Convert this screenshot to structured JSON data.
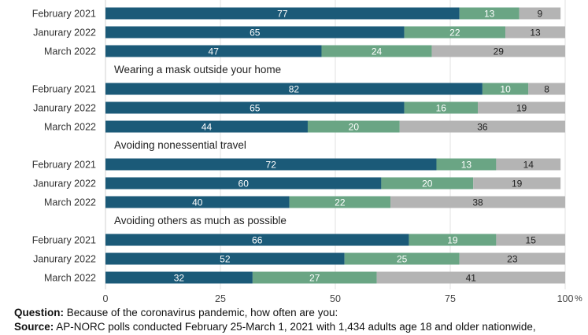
{
  "chart_data": {
    "type": "bar",
    "orientation": "horizontal",
    "stacked": true,
    "xlim": [
      0,
      100
    ],
    "x_ticks": [
      "0",
      "25",
      "50",
      "75",
      "100"
    ],
    "x_unit": "%",
    "grid": true,
    "colors": [
      "#1b5a78",
      "#6aa584",
      "#b4b4b4"
    ],
    "groups": [
      {
        "title": "",
        "rows": [
          {
            "label": "February 2021",
            "values": [
              77,
              13,
              9
            ]
          },
          {
            "label": "Janurary 2022",
            "values": [
              65,
              22,
              13
            ]
          },
          {
            "label": "March 2022",
            "values": [
              47,
              24,
              29
            ]
          }
        ]
      },
      {
        "title": "Wearing a mask outside your home",
        "rows": [
          {
            "label": "February 2021",
            "values": [
              82,
              10,
              8
            ]
          },
          {
            "label": "Janurary 2022",
            "values": [
              65,
              16,
              19
            ]
          },
          {
            "label": "March 2022",
            "values": [
              44,
              20,
              36
            ]
          }
        ]
      },
      {
        "title": "Avoiding nonessential travel",
        "rows": [
          {
            "label": "February 2021",
            "values": [
              72,
              13,
              14
            ]
          },
          {
            "label": "Janurary 2022",
            "values": [
              60,
              20,
              19
            ]
          },
          {
            "label": "March 2022",
            "values": [
              40,
              22,
              38
            ]
          }
        ]
      },
      {
        "title": "Avoiding others as much as possible",
        "rows": [
          {
            "label": "February 2021",
            "values": [
              66,
              19,
              15
            ]
          },
          {
            "label": "Janurary 2022",
            "values": [
              52,
              25,
              23
            ]
          },
          {
            "label": "March 2022",
            "values": [
              32,
              27,
              41
            ]
          }
        ]
      }
    ]
  },
  "footer": {
    "question_label": "Question:",
    "question_text": " Because of the coronavirus pandemic, how often are you:",
    "source_label": "Source:",
    "source_text": "  AP-NORC polls conducted February 25-March 1, 2021 with 1,434 adults age 18 and older nationwide,"
  }
}
